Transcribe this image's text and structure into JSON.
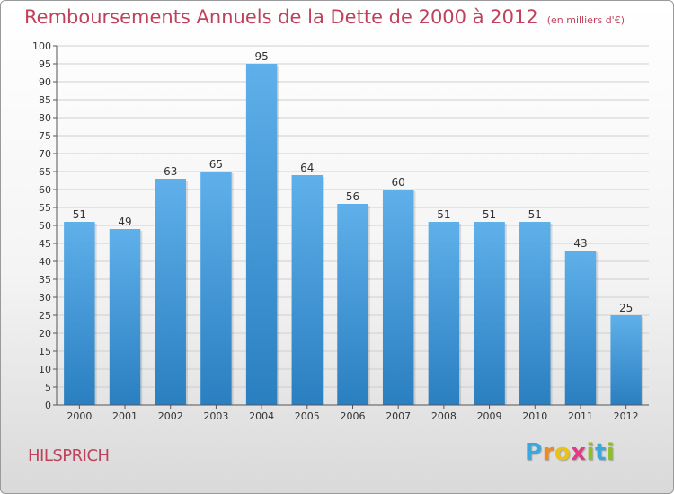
{
  "title": "Remboursements Annuels de la Dette de 2000 à 2012",
  "unit_note": "(en milliers d'€)",
  "commune": "HILSPRICH",
  "logo_text": "Proxiti",
  "colors": {
    "title": "#c0415b",
    "bar_top": "#5fb0ea",
    "bar_bottom": "#2a7fc0",
    "grid": "#cfcfcf"
  },
  "chart_data": {
    "type": "bar",
    "categories": [
      "2000",
      "2001",
      "2002",
      "2003",
      "2004",
      "2005",
      "2006",
      "2007",
      "2008",
      "2009",
      "2010",
      "2011",
      "2012"
    ],
    "values": [
      51,
      49,
      63,
      65,
      95,
      64,
      56,
      60,
      51,
      51,
      51,
      43,
      25
    ],
    "title": "Remboursements Annuels de la Dette de 2000 à 2012",
    "xlabel": "",
    "ylabel": "",
    "ylim": [
      0,
      100
    ],
    "ytick_step": 5,
    "grid": true,
    "legend": "none",
    "data_labels": true
  }
}
